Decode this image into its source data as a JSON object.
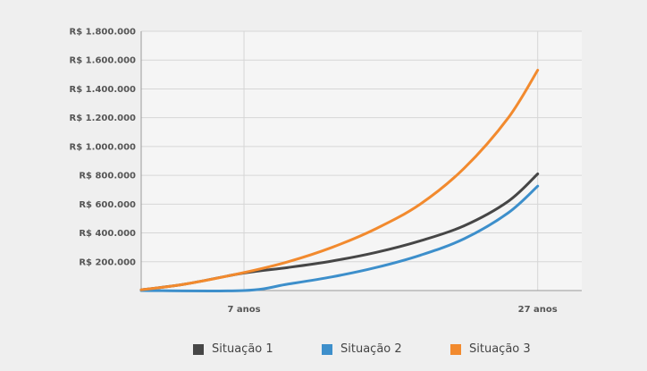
{
  "chart_data": {
    "type": "line",
    "title": "",
    "xlabel": "",
    "ylabel": "",
    "xlim": [
      0,
      30
    ],
    "ylim": [
      0,
      1800000
    ],
    "y_ticks": [
      200000,
      400000,
      600000,
      800000,
      1000000,
      1200000,
      1400000,
      1600000,
      1800000
    ],
    "y_tick_labels": [
      "R$ 200.000",
      "R$ 400.000",
      "R$ 600.000",
      "R$ 800.000",
      "R$ 1.000.000",
      "R$ 1.200.000",
      "R$ 1.400.000",
      "R$ 1.600.000",
      "R$ 1.800.000"
    ],
    "x_ticks": [
      7,
      27
    ],
    "x_tick_labels": [
      "7 anos",
      "27 anos"
    ],
    "grid": true,
    "legend_position": "bottom",
    "series": [
      {
        "name": "Situação 1",
        "color": "#464646",
        "points": [
          [
            0,
            5000
          ],
          [
            3,
            45000
          ],
          [
            7,
            122000
          ],
          [
            10,
            160000
          ],
          [
            13,
            205000
          ],
          [
            16,
            265000
          ],
          [
            19,
            345000
          ],
          [
            22,
            450000
          ],
          [
            25,
            620000
          ],
          [
            27,
            810000
          ]
        ]
      },
      {
        "name": "Situação 2",
        "color": "#3d8fcb",
        "points": [
          [
            0,
            0
          ],
          [
            7,
            0
          ],
          [
            10,
            45000
          ],
          [
            13,
            95000
          ],
          [
            16,
            160000
          ],
          [
            19,
            245000
          ],
          [
            22,
            360000
          ],
          [
            25,
            540000
          ],
          [
            27,
            725000
          ]
        ]
      },
      {
        "name": "Situação 3",
        "color": "#f28a2e",
        "points": [
          [
            0,
            5000
          ],
          [
            3,
            45000
          ],
          [
            7,
            125000
          ],
          [
            10,
            200000
          ],
          [
            13,
            300000
          ],
          [
            16,
            430000
          ],
          [
            19,
            600000
          ],
          [
            22,
            850000
          ],
          [
            25,
            1200000
          ],
          [
            27,
            1530000
          ]
        ]
      }
    ]
  }
}
